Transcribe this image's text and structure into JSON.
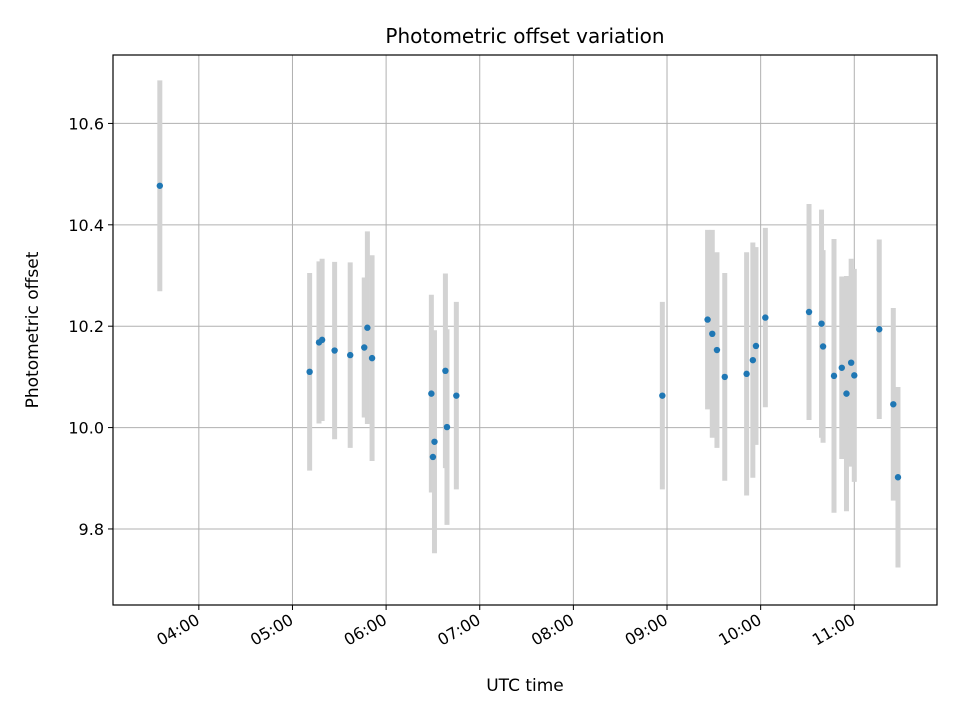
{
  "chart_data": {
    "type": "scatter",
    "title": "Photometric offset variation",
    "xlabel": "UTC time",
    "ylabel": "Photometric offset",
    "x_unit": "UTC time (HH:MM)",
    "xlim": [
      "03:05",
      "11:53"
    ],
    "ylim": [
      9.65,
      10.735
    ],
    "x_ticks": [
      "04:00",
      "05:00",
      "06:00",
      "07:00",
      "08:00",
      "09:00",
      "10:00",
      "11:00"
    ],
    "y_ticks": [
      "9.8",
      "10.0",
      "10.2",
      "10.4",
      "10.6"
    ],
    "grid": true,
    "colors": {
      "point": "#1f77b4",
      "errorbar": "#d3d3d3",
      "grid": "#b0b0b0"
    },
    "points": [
      {
        "x": "03:35",
        "y": 10.477,
        "err": 0.208
      },
      {
        "x": "05:11",
        "y": 10.11,
        "err": 0.195
      },
      {
        "x": "05:17",
        "y": 10.168,
        "err": 0.16
      },
      {
        "x": "05:19",
        "y": 10.173,
        "err": 0.16
      },
      {
        "x": "05:27",
        "y": 10.152,
        "err": 0.175
      },
      {
        "x": "05:37",
        "y": 10.143,
        "err": 0.183
      },
      {
        "x": "05:46",
        "y": 10.158,
        "err": 0.138
      },
      {
        "x": "05:48",
        "y": 10.197,
        "err": 0.19
      },
      {
        "x": "05:51",
        "y": 10.137,
        "err": 0.203
      },
      {
        "x": "06:29",
        "y": 10.067,
        "err": 0.195
      },
      {
        "x": "06:30",
        "y": 9.942,
        "err": 0.07
      },
      {
        "x": "06:31",
        "y": 9.972,
        "err": 0.22
      },
      {
        "x": "06:38",
        "y": 10.112,
        "err": 0.192
      },
      {
        "x": "06:39",
        "y": 10.001,
        "err": 0.193
      },
      {
        "x": "06:45",
        "y": 10.063,
        "err": 0.185
      },
      {
        "x": "08:57",
        "y": 10.063,
        "err": 0.185
      },
      {
        "x": "09:26",
        "y": 10.213,
        "err": 0.177
      },
      {
        "x": "09:29",
        "y": 10.185,
        "err": 0.205
      },
      {
        "x": "09:32",
        "y": 10.153,
        "err": 0.193
      },
      {
        "x": "09:37",
        "y": 10.1,
        "err": 0.205
      },
      {
        "x": "09:51",
        "y": 10.106,
        "err": 0.24
      },
      {
        "x": "09:55",
        "y": 10.133,
        "err": 0.232
      },
      {
        "x": "09:57",
        "y": 10.161,
        "err": 0.195
      },
      {
        "x": "10:03",
        "y": 10.217,
        "err": 0.177
      },
      {
        "x": "10:31",
        "y": 10.228,
        "err": 0.213
      },
      {
        "x": "10:39",
        "y": 10.205,
        "err": 0.225
      },
      {
        "x": "10:40",
        "y": 10.16,
        "err": 0.19
      },
      {
        "x": "10:47",
        "y": 10.102,
        "err": 0.27
      },
      {
        "x": "10:52",
        "y": 10.118,
        "err": 0.18
      },
      {
        "x": "10:55",
        "y": 10.067,
        "err": 0.232
      },
      {
        "x": "10:58",
        "y": 10.128,
        "err": 0.205
      },
      {
        "x": "11:00",
        "y": 10.103,
        "err": 0.21
      },
      {
        "x": "11:16",
        "y": 10.194,
        "err": 0.177
      },
      {
        "x": "11:25",
        "y": 10.046,
        "err": 0.19
      },
      {
        "x": "11:28",
        "y": 9.902,
        "err": 0.178
      }
    ]
  }
}
